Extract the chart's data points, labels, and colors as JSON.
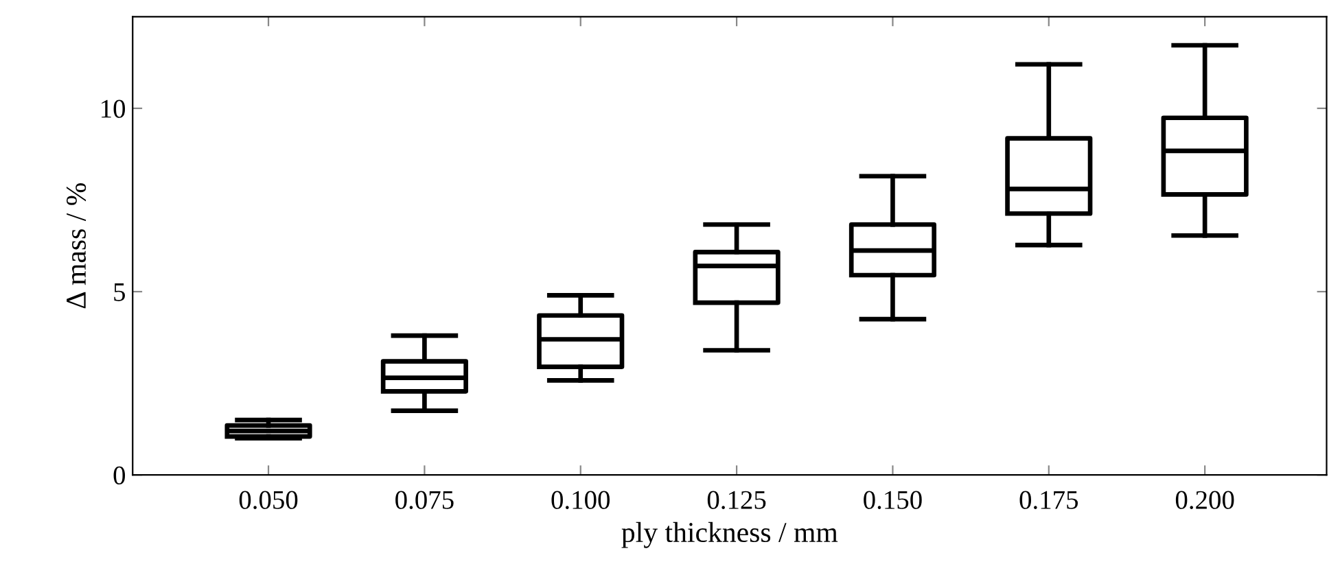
{
  "chart_data": {
    "type": "box",
    "xlabel": "ply thickness / mm",
    "ylabel": "Δ mass / %",
    "categories": [
      "0.050",
      "0.075",
      "0.100",
      "0.125",
      "0.150",
      "0.175",
      "0.200"
    ],
    "boxes": [
      {
        "low": 1.0,
        "q1": 1.05,
        "median": 1.2,
        "q3": 1.35,
        "high": 1.5
      },
      {
        "low": 1.75,
        "q1": 2.28,
        "median": 2.65,
        "q3": 3.1,
        "high": 3.8
      },
      {
        "low": 2.58,
        "q1": 2.95,
        "median": 3.7,
        "q3": 4.35,
        "high": 4.9
      },
      {
        "low": 3.4,
        "q1": 4.7,
        "median": 5.7,
        "q3": 6.08,
        "high": 6.83
      },
      {
        "low": 4.25,
        "q1": 5.45,
        "median": 6.12,
        "q3": 6.83,
        "high": 8.15
      },
      {
        "low": 6.27,
        "q1": 7.13,
        "median": 7.8,
        "q3": 9.18,
        "high": 11.2
      },
      {
        "low": 6.53,
        "q1": 7.65,
        "median": 8.84,
        "q3": 9.74,
        "high": 11.72
      }
    ],
    "color": "#000000",
    "ylim": [
      0,
      12.5
    ],
    "yticks": [
      0,
      5,
      10
    ],
    "grid": false,
    "legend": false
  }
}
